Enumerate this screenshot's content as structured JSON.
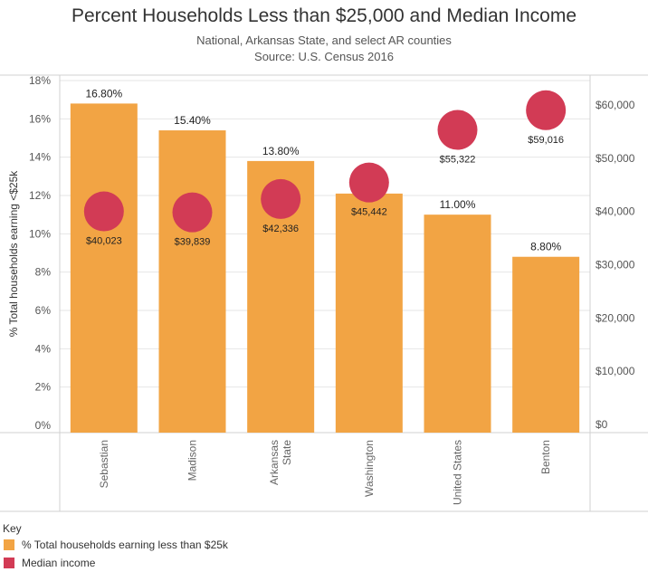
{
  "header": {
    "title": "Percent Households Less than $25,000 and Median Income",
    "subtitle1": "National, Arkansas State, and select AR counties",
    "subtitle2": "Source: U.S. Census 2016"
  },
  "colors": {
    "bar": "#F2A444",
    "circle": "#D23B55",
    "grid": "#e6e6e6",
    "axis": "#d0d0d0"
  },
  "chart_data": {
    "type": "bar",
    "categories": [
      "Sebastian",
      "Madison",
      "Arkansas\nState",
      "Washington",
      "United States",
      "Benton"
    ],
    "series": [
      {
        "values": [
          16.8,
          15.4,
          13.8,
          12.1,
          11.0,
          8.8
        ],
        "labels": [
          "16.80%",
          "15.40%",
          "13.80%",
          "12.10%",
          "11.00%",
          "8.80%"
        ]
      },
      {
        "values": [
          40023,
          39839,
          42336,
          45442,
          55322,
          59016
        ],
        "labels": [
          "$40,023",
          "$39,839",
          "$42,336",
          "$45,442",
          "$55,322",
          "$59,016"
        ]
      }
    ],
    "ylabel": "% Total households earning <$25k",
    "ylim": [
      0,
      18
    ],
    "y_ticks": [
      "0%",
      "2%",
      "4%",
      "6%",
      "8%",
      "10%",
      "12%",
      "14%",
      "16%",
      "18%"
    ],
    "y2lim": [
      0,
      64000
    ],
    "y2_ticks": [
      "$0",
      "$10,000",
      "$20,000",
      "$30,000",
      "$40,000",
      "$50,000",
      "$60,000"
    ],
    "grid": true
  },
  "legend": {
    "title": "Key",
    "items": [
      {
        "label": "% Total households earning less than $25k",
        "color": "#F2A444"
      },
      {
        "label": "Median income",
        "color": "#D23B55"
      }
    ]
  }
}
